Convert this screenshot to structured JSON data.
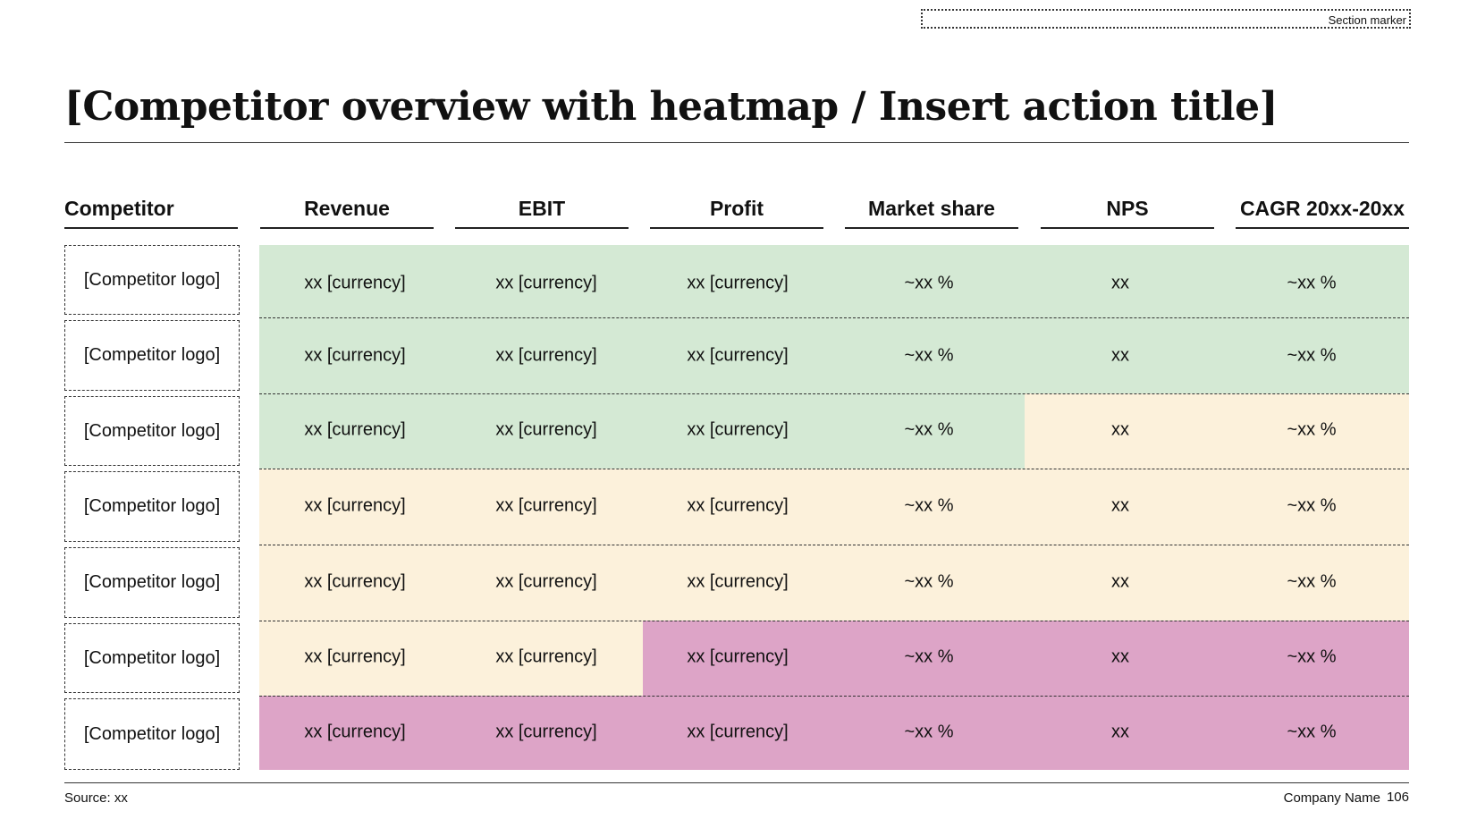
{
  "section_marker": "Section marker",
  "title": "[Competitor overview with heatmap / Insert action title]",
  "headers": {
    "competitor": "Competitor",
    "revenue": "Revenue",
    "ebit": "EBIT",
    "profit": "Profit",
    "market_share": "Market share",
    "nps": "NPS",
    "cagr": "CAGR 20xx-20xx"
  },
  "logo_placeholder": "[Competitor logo]",
  "values": {
    "revenue": "xx [currency]",
    "ebit": "xx [currency]",
    "profit": "xx [currency]",
    "market_share": "~xx %",
    "nps": "xx",
    "cagr": "~xx %"
  },
  "heat_colors": {
    "green": "#d4e9d4",
    "yellow": "#fcf1db",
    "pink": "#dda4c7"
  },
  "footer": {
    "source": "Source: xx",
    "company": "Company Name",
    "page": "106"
  }
}
